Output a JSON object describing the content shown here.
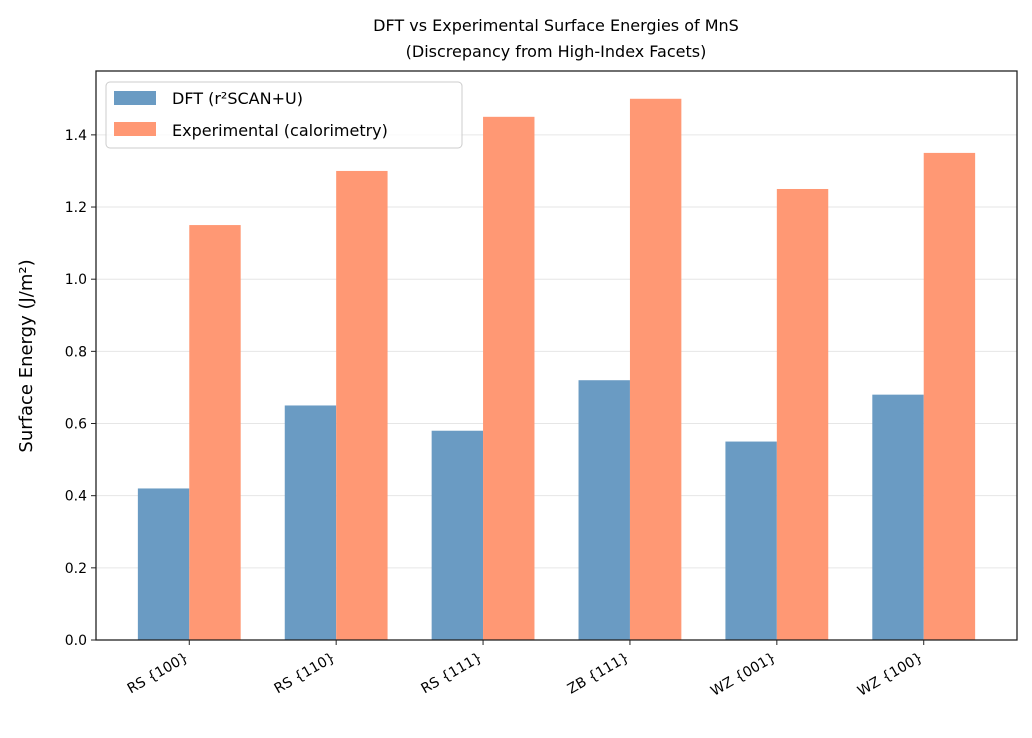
{
  "chart_data": {
    "type": "bar",
    "title": "DFT vs Experimental Surface Energies of MnS",
    "subtitle": "(Discrepancy from High-Index Facets)",
    "xlabel": "",
    "ylabel": "Surface Energy (J/m²)",
    "categories": [
      "RS {100}",
      "RS {110}",
      "RS {111}",
      "ZB {111}",
      "WZ {001}",
      "WZ {100}"
    ],
    "series": [
      {
        "name": "DFT (r²SCAN+U)",
        "color": "#6a9bc3",
        "values": [
          0.42,
          0.65,
          0.58,
          0.72,
          0.55,
          0.68
        ]
      },
      {
        "name": "Experimental (calorimetry)",
        "color": "#ff9874",
        "values": [
          1.15,
          1.3,
          1.45,
          1.5,
          1.25,
          1.35
        ]
      }
    ],
    "ylim": [
      0,
      1.577
    ],
    "yticks": [
      "0.0",
      "0.2",
      "0.4",
      "0.6",
      "0.8",
      "1.0",
      "1.2",
      "1.4"
    ],
    "grid": "y",
    "legend": "top-left"
  }
}
